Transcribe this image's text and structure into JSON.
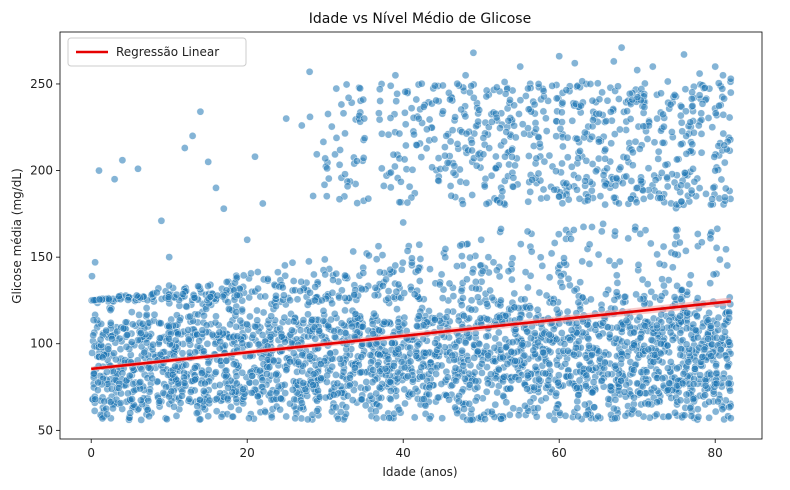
{
  "chart_data": {
    "type": "scatter",
    "title": "Idade vs Nível Médio de Glicose",
    "xlabel": "Idade (anos)",
    "ylabel": "Glicose média (mg/dL)",
    "xlim": [
      -4,
      86
    ],
    "ylim": [
      45,
      280
    ],
    "xticks": [
      0,
      20,
      40,
      60,
      80
    ],
    "yticks": [
      50,
      100,
      150,
      200,
      250
    ],
    "xtick_labels": [
      "0",
      "20",
      "40",
      "60",
      "80"
    ],
    "ytick_labels": [
      "50",
      "100",
      "150",
      "200",
      "250"
    ],
    "grid": false,
    "legend": {
      "position": "top-left",
      "entries": [
        "Regressão Linear"
      ]
    },
    "regression": {
      "name": "Regressão Linear",
      "x": [
        0,
        82
      ],
      "y": [
        85.5,
        124.5
      ],
      "color": "#e60000"
    },
    "scatter": {
      "color": "#1f77b4",
      "alpha": 0.55,
      "x_range": [
        0.1,
        82
      ],
      "points_sample": [
        [
          0.1,
          139
        ],
        [
          0.5,
          147
        ],
        [
          1,
          200
        ],
        [
          3,
          195
        ],
        [
          4,
          206
        ],
        [
          6,
          201
        ],
        [
          9,
          171
        ],
        [
          12,
          213
        ],
        [
          13,
          220
        ],
        [
          14,
          234
        ],
        [
          15,
          205
        ],
        [
          16,
          190
        ],
        [
          17,
          178
        ],
        [
          21,
          208
        ],
        [
          22,
          181
        ],
        [
          25,
          230
        ],
        [
          27,
          226
        ],
        [
          28,
          257
        ],
        [
          30,
          207
        ],
        [
          33,
          242
        ],
        [
          35,
          230
        ],
        [
          37,
          247
        ],
        [
          39,
          255
        ],
        [
          42,
          230
        ],
        [
          44,
          218
        ],
        [
          46,
          241
        ],
        [
          48,
          255
        ],
        [
          49,
          268
        ],
        [
          52,
          248
        ],
        [
          55,
          260
        ],
        [
          58,
          246
        ],
        [
          60,
          266
        ],
        [
          62,
          262
        ],
        [
          64,
          250
        ],
        [
          67,
          263
        ],
        [
          68,
          271
        ],
        [
          70,
          258
        ],
        [
          72,
          260
        ],
        [
          76,
          267
        ],
        [
          78,
          256
        ],
        [
          80,
          260
        ],
        [
          81,
          255
        ],
        [
          82,
          253
        ],
        [
          82,
          245
        ],
        [
          10,
          150
        ],
        [
          20,
          160
        ],
        [
          30,
          140
        ],
        [
          40,
          170
        ],
        [
          50,
          160
        ],
        [
          60,
          185
        ],
        [
          70,
          190
        ],
        [
          80,
          200
        ],
        [
          5,
          60
        ],
        [
          25,
          58
        ],
        [
          45,
          57
        ],
        [
          65,
          58
        ],
        [
          82,
          57
        ]
      ]
    }
  }
}
